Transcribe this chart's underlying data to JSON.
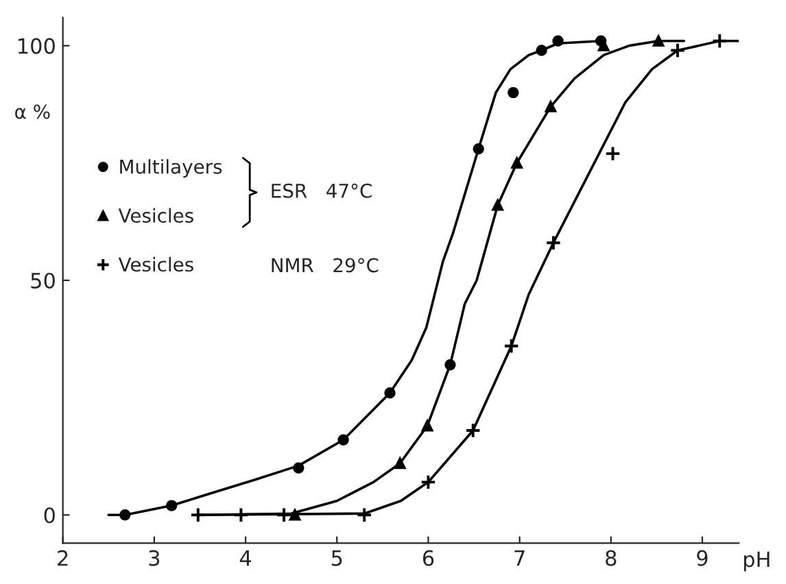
{
  "chart_data": {
    "type": "scatter",
    "xlabel": "pH",
    "ylabel": "α %",
    "xlim": [
      2,
      9.4
    ],
    "ylim": [
      -6,
      106
    ],
    "xticks": [
      2,
      3,
      4,
      5,
      6,
      7,
      8,
      9
    ],
    "yticks": [
      0,
      50,
      100
    ],
    "grid": false,
    "legend": "left",
    "annotations": [
      "ESR   47°C",
      "NMR   29°C"
    ],
    "series": [
      {
        "name": "Multilayers",
        "marker": "circle",
        "color": "#000000",
        "x": [
          2.68,
          3.19,
          4.58,
          5.07,
          5.58,
          6.24,
          6.55,
          6.93,
          7.24,
          7.42,
          7.89
        ],
        "values": [
          0,
          2,
          10,
          16,
          26,
          32,
          78,
          90,
          99,
          101,
          101
        ]
      },
      {
        "name": "Vesicles",
        "marker": "triangle",
        "color": "#000000",
        "x": [
          4.54,
          5.69,
          5.99,
          6.76,
          6.97,
          7.34,
          7.92,
          8.52
        ],
        "values": [
          0,
          11,
          19,
          66,
          75,
          87,
          100,
          101
        ]
      },
      {
        "name": "Vesicles",
        "marker": "cross",
        "color": "#000000",
        "x": [
          3.48,
          3.95,
          4.42,
          5.3,
          6.0,
          6.49,
          6.91,
          7.37,
          8.02,
          8.73,
          9.19
        ],
        "values": [
          0,
          0,
          0,
          0,
          7,
          18,
          36,
          58,
          77,
          99,
          101
        ]
      },
      {
        "type": "line",
        "color": "#000000",
        "x": [
          2.5,
          2.68,
          3.19,
          3.6,
          4.1,
          4.58,
          5.07,
          5.58,
          5.82,
          5.98,
          6.16,
          6.27,
          6.55,
          6.74,
          6.9,
          7.1,
          7.24,
          7.42,
          7.9
        ],
        "values": [
          0,
          0,
          2,
          4.5,
          7.5,
          10.5,
          16,
          26,
          33,
          40,
          54,
          60,
          78,
          90,
          95,
          98,
          99,
          100.5,
          101
        ]
      },
      {
        "type": "line",
        "color": "#000000",
        "x": [
          3.5,
          4.5,
          5.0,
          5.4,
          5.69,
          5.99,
          6.24,
          6.4,
          6.53,
          6.76,
          6.97,
          7.34,
          7.6,
          7.92,
          8.2,
          8.52,
          8.8
        ],
        "values": [
          0,
          0.3,
          3,
          7,
          11,
          19,
          32,
          45,
          50,
          66,
          75,
          87,
          93,
          98,
          100,
          101,
          101
        ]
      },
      {
        "type": "line",
        "color": "#000000",
        "x": [
          3.48,
          5.3,
          5.7,
          6.0,
          6.49,
          6.91,
          7.1,
          7.37,
          7.87,
          8.16,
          8.45,
          8.73,
          9.19,
          9.4
        ],
        "values": [
          0,
          0.3,
          3,
          7,
          18,
          36,
          47,
          58,
          77,
          88,
          95,
          99,
          101,
          101
        ]
      }
    ]
  }
}
